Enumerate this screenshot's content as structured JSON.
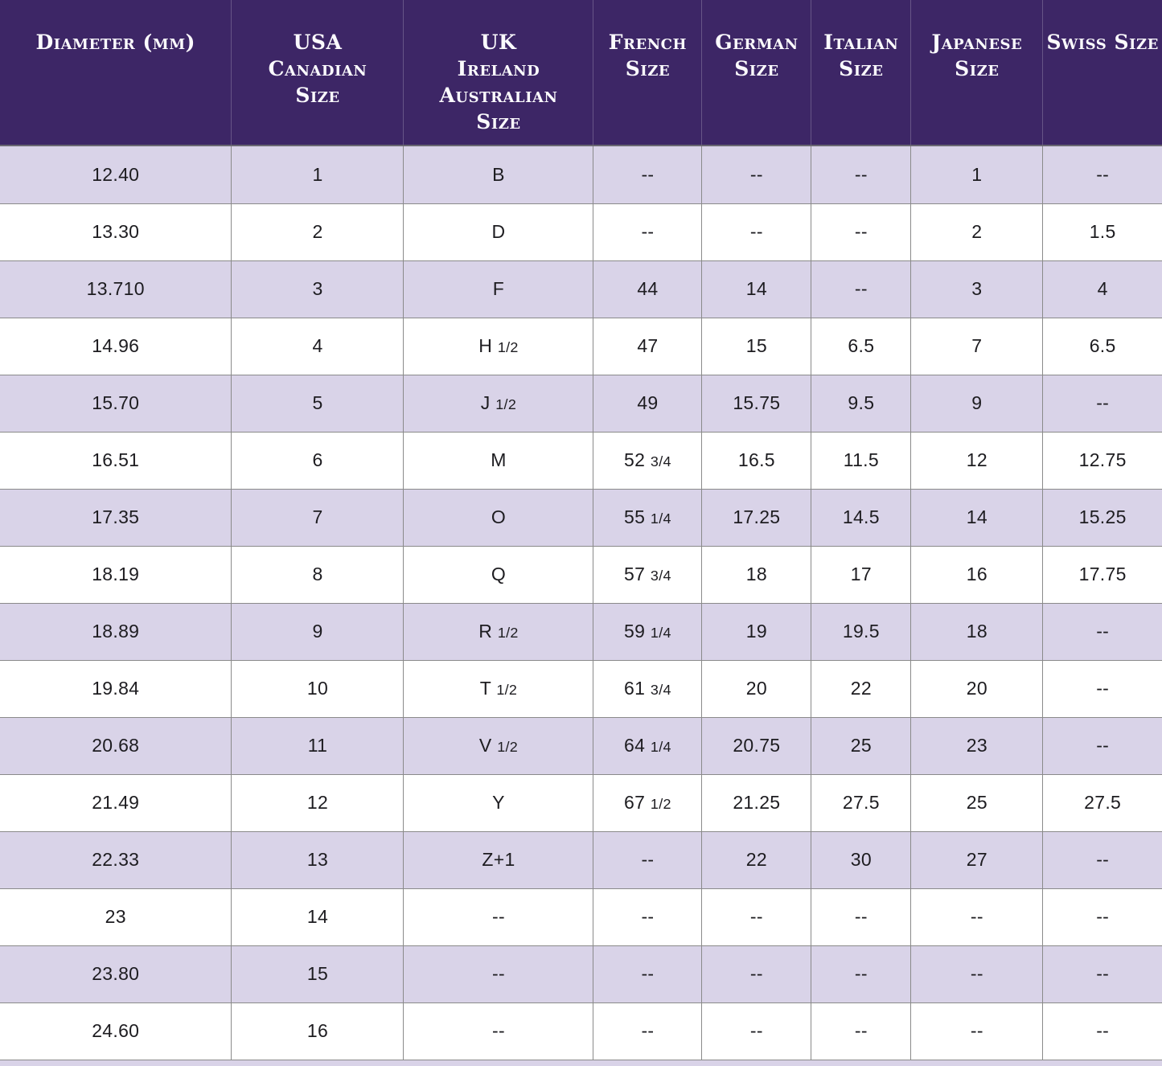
{
  "chart_data": {
    "type": "table",
    "title": "",
    "columns": [
      "Diameter (mm)",
      "USA Canadian Size",
      "UK Ireland Australian Size",
      "French Size",
      "German Size",
      "Italian Size",
      "Japanese Size",
      "Swiss Size"
    ],
    "header_lines": [
      [
        "Diameter (mm)"
      ],
      [
        "USA",
        "Canadian",
        "Size"
      ],
      [
        "UK",
        "Ireland",
        "Australian",
        "Size"
      ],
      [
        "French",
        "Size"
      ],
      [
        "German",
        "Size"
      ],
      [
        "Italian",
        "Size"
      ],
      [
        "Japanese Size"
      ],
      [
        "Swiss Size"
      ]
    ],
    "rows": [
      [
        "12.40",
        "1",
        "B",
        "--",
        "--",
        "--",
        "1",
        "--"
      ],
      [
        "13.30",
        "2",
        "D",
        "--",
        "--",
        "--",
        "2",
        "1.5"
      ],
      [
        "13.710",
        "3",
        "F",
        "44",
        "14",
        "--",
        "3",
        "4"
      ],
      [
        "14.96",
        "4",
        "H 1/2",
        "47",
        "15",
        "6.5",
        "7",
        "6.5"
      ],
      [
        "15.70",
        "5",
        "J 1/2",
        "49",
        "15.75",
        "9.5",
        "9",
        "--"
      ],
      [
        "16.51",
        "6",
        "M",
        "52 3/4",
        "16.5",
        "11.5",
        "12",
        "12.75"
      ],
      [
        "17.35",
        "7",
        "O",
        "55 1/4",
        "17.25",
        "14.5",
        "14",
        "15.25"
      ],
      [
        "18.19",
        "8",
        "Q",
        "57 3/4",
        "18",
        "17",
        "16",
        "17.75"
      ],
      [
        "18.89",
        "9",
        "R 1/2",
        "59 1/4",
        "19",
        "19.5",
        "18",
        "--"
      ],
      [
        "19.84",
        "10",
        "T 1/2",
        "61 3/4",
        "20",
        "22",
        "20",
        "--"
      ],
      [
        "20.68",
        "11",
        "V 1/2",
        "64 1/4",
        "20.75",
        "25",
        "23",
        "--"
      ],
      [
        "21.49",
        "12",
        "Y",
        "67 1/2",
        "21.25",
        "27.5",
        "25",
        "27.5"
      ],
      [
        "22.33",
        "13",
        "Z+1",
        "--",
        "22",
        "30",
        "27",
        "--"
      ],
      [
        "23",
        "14",
        "--",
        "--",
        "--",
        "--",
        "--",
        "--"
      ],
      [
        "23.80",
        "15",
        "--",
        "--",
        "--",
        "--",
        "--",
        "--"
      ],
      [
        "24.60",
        "16",
        "--",
        "--",
        "--",
        "--",
        "--",
        "--"
      ]
    ]
  },
  "colors": {
    "header_bg": "#3d2666",
    "header_text": "#fbfafd",
    "row_bg": "#ffffff",
    "row_alt_bg": "#d9d3e8",
    "body_text": "#1d1c20",
    "grid_line": "#8a8a8a"
  }
}
